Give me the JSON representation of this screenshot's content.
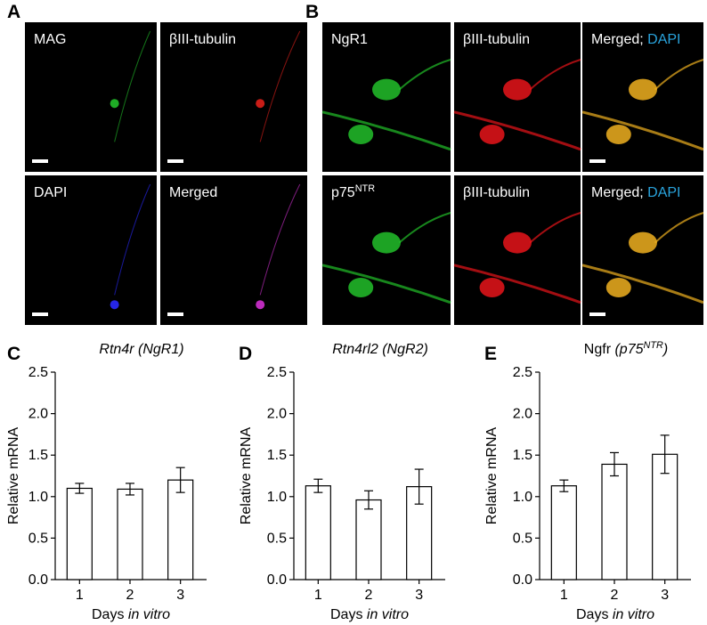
{
  "images": [
    {
      "letter": "A",
      "tiles": [
        {
          "label": [
            {
              "text": "MAG"
            }
          ]
        },
        {
          "label": [
            {
              "text": "βIII-tubulin"
            }
          ]
        },
        {
          "label": [
            {
              "text": "DAPI"
            }
          ]
        },
        {
          "label": [
            {
              "text": "Merged"
            }
          ]
        }
      ]
    },
    {
      "letter": "B",
      "tiles": [
        {
          "label": [
            {
              "text": "NgR1"
            }
          ]
        },
        {
          "label": [
            {
              "text": "βIII-tubulin"
            }
          ]
        },
        {
          "label": [
            {
              "text": "Merged; "
            },
            {
              "text": "DAPI",
              "color": "#29a3dc"
            }
          ]
        },
        {
          "label": [
            {
              "text": "p75"
            },
            {
              "text": "NTR",
              "sup": true
            }
          ]
        },
        {
          "label": [
            {
              "text": "βIII-tubulin"
            }
          ]
        },
        {
          "label": [
            {
              "text": "Merged; "
            },
            {
              "text": "DAPI",
              "color": "#29a3dc"
            }
          ]
        }
      ]
    }
  ],
  "chart_data": [
    {
      "type": "bar",
      "panel": "C",
      "title": [
        {
          "text": "Rtn4r (NgR1)",
          "italic": true
        }
      ],
      "ylabel": "Relative mRNA",
      "xlabel": [
        {
          "text": "Days "
        },
        {
          "text": "in vitro",
          "italic": true
        }
      ],
      "categories": [
        "1",
        "2",
        "3"
      ],
      "values": [
        1.1,
        1.09,
        1.2
      ],
      "errors": [
        0.06,
        0.07,
        0.15
      ],
      "color": "#ffffff",
      "ylim": [
        0,
        2.5
      ],
      "yticks": [
        {
          "value": 0,
          "label": "0.0"
        },
        0.5,
        {
          "value": 1,
          "label": "1.0"
        },
        1.5,
        {
          "value": 2,
          "label": "2.0"
        },
        2.5
      ]
    },
    {
      "type": "bar",
      "panel": "D",
      "title": [
        {
          "text": "Rtn4rl2 (NgR2)",
          "italic": true
        }
      ],
      "ylabel": "Relative mRNA",
      "xlabel": [
        {
          "text": "Days "
        },
        {
          "text": "in vitro",
          "italic": true
        }
      ],
      "categories": [
        "1",
        "2",
        "3"
      ],
      "values": [
        1.13,
        0.96,
        1.12
      ],
      "errors": [
        0.08,
        0.11,
        0.21
      ],
      "color": "#ffffff",
      "ylim": [
        0,
        2.5
      ],
      "yticks": [
        {
          "value": 0,
          "label": "0.0"
        },
        0.5,
        {
          "value": 1,
          "label": "1.0"
        },
        1.5,
        {
          "value": 2,
          "label": "2.0"
        },
        2.5
      ]
    },
    {
      "type": "bar",
      "panel": "E",
      "title": [
        {
          "text": "Ngfr "
        },
        {
          "text": "(p75",
          "italic": true
        },
        {
          "text": "NTR",
          "italic": true,
          "sup": true
        },
        {
          "text": ")",
          "italic": true
        }
      ],
      "ylabel": "Relative mRNA",
      "xlabel": [
        {
          "text": "Days "
        },
        {
          "text": "in vitro",
          "italic": true
        }
      ],
      "categories": [
        "1",
        "2",
        "3"
      ],
      "values": [
        1.13,
        1.39,
        1.51
      ],
      "errors": [
        0.07,
        0.14,
        0.23
      ],
      "color": "#ffffff",
      "ylim": [
        0,
        2.5
      ],
      "yticks": [
        {
          "value": 0,
          "label": "0.0"
        },
        0.5,
        {
          "value": 1,
          "label": "1.0"
        },
        1.5,
        {
          "value": 2,
          "label": "2.0"
        },
        2.5
      ]
    }
  ]
}
